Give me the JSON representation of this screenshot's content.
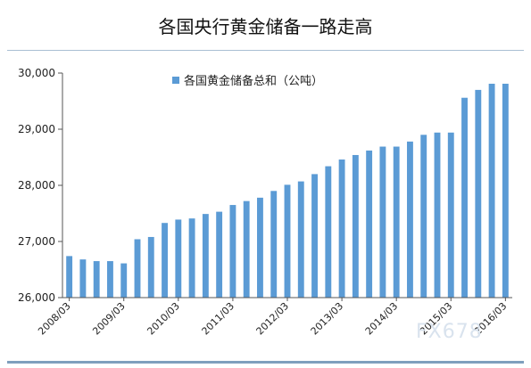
{
  "chart_data": {
    "type": "bar",
    "title": "各国央行黄金储备一路走高",
    "legend": {
      "label": "各国黄金储备总和（公吨）",
      "position": "top-center"
    },
    "xlabel": "",
    "ylabel": "",
    "ylim": [
      26000,
      30000
    ],
    "yticks": [
      26000,
      27000,
      28000,
      29000,
      30000
    ],
    "ytick_labels": [
      "26,000",
      "27,000",
      "28,000",
      "29,000",
      "30,000"
    ],
    "xtick_labels": [
      "2008/03",
      "2009/03",
      "2010/03",
      "2011/03",
      "2012/03",
      "2013/03",
      "2014/03",
      "2015/03",
      "2016/03"
    ],
    "xtick_positions": [
      0,
      4,
      8,
      12,
      16,
      20,
      24,
      28,
      32
    ],
    "values": [
      26740,
      26680,
      26650,
      26650,
      26610,
      27040,
      27080,
      27330,
      27390,
      27410,
      27490,
      27530,
      27650,
      27720,
      27780,
      27900,
      28010,
      28070,
      28200,
      28340,
      28460,
      28540,
      28620,
      28690,
      28690,
      28780,
      28900,
      28940,
      28940,
      29560,
      29700,
      29810,
      29810
    ],
    "bar_color": "#5b9bd5"
  },
  "watermark": "FX678"
}
